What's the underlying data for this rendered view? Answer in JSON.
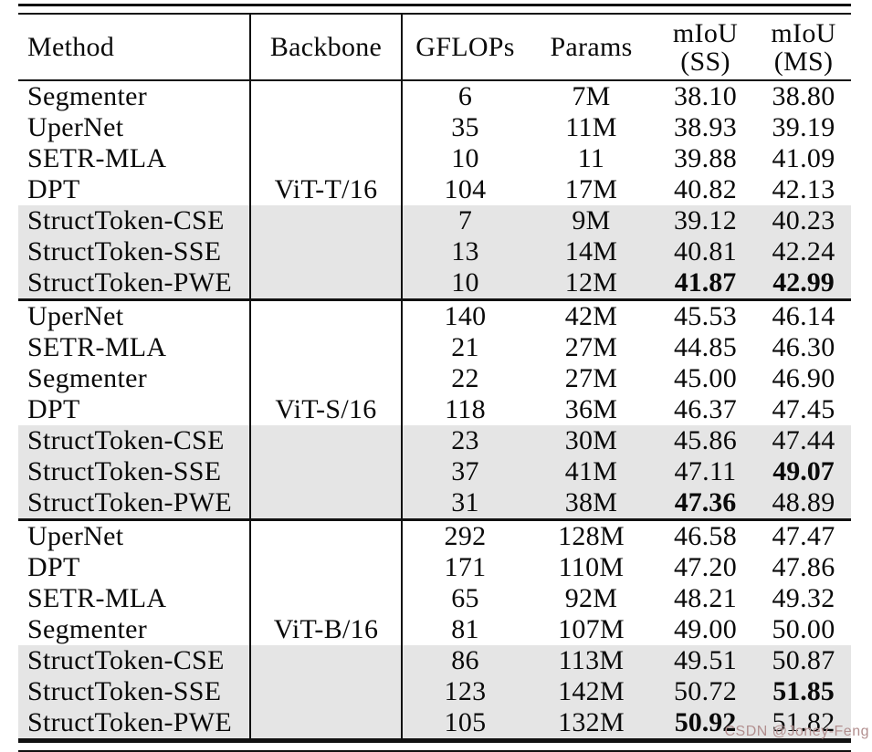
{
  "colors": {
    "rule": "#111111",
    "highlight_bg": "#e5e5e5",
    "watermark": "#b28f8f",
    "page_bg": "#ffffff"
  },
  "watermark": {
    "text": "CSDN @Joney-Feng"
  },
  "table": {
    "headers": {
      "method": "Method",
      "backbone": "Backbone",
      "gflops": "GFLOPs",
      "params": "Params",
      "miou_ss": [
        "mIoU",
        "(SS)"
      ],
      "miou_ms": [
        "mIoU",
        "(MS)"
      ]
    },
    "groups": [
      {
        "backbone": "ViT-T/16",
        "rows": [
          {
            "method": "Segmenter",
            "gflops": "6",
            "params": "7M",
            "ss": "38.10",
            "ms": "38.80",
            "highlight": false,
            "ss_bold": false,
            "ms_bold": false,
            "backbone_here": false
          },
          {
            "method": "UperNet",
            "gflops": "35",
            "params": "11M",
            "ss": "38.93",
            "ms": "39.19",
            "highlight": false,
            "ss_bold": false,
            "ms_bold": false,
            "backbone_here": false
          },
          {
            "method": "SETR-MLA",
            "gflops": "10",
            "params": "11",
            "ss": "39.88",
            "ms": "41.09",
            "highlight": false,
            "ss_bold": false,
            "ms_bold": false,
            "backbone_here": false
          },
          {
            "method": "DPT",
            "gflops": "104",
            "params": "17M",
            "ss": "40.82",
            "ms": "42.13",
            "highlight": false,
            "ss_bold": false,
            "ms_bold": false,
            "backbone_here": true
          },
          {
            "method": "StructToken-CSE",
            "gflops": "7",
            "params": "9M",
            "ss": "39.12",
            "ms": "40.23",
            "highlight": true,
            "ss_bold": false,
            "ms_bold": false,
            "backbone_here": false
          },
          {
            "method": "StructToken-SSE",
            "gflops": "13",
            "params": "14M",
            "ss": "40.81",
            "ms": "42.24",
            "highlight": true,
            "ss_bold": false,
            "ms_bold": false,
            "backbone_here": false
          },
          {
            "method": "StructToken-PWE",
            "gflops": "10",
            "params": "12M",
            "ss": "41.87",
            "ms": "42.99",
            "highlight": true,
            "ss_bold": true,
            "ms_bold": true,
            "backbone_here": false
          }
        ]
      },
      {
        "backbone": "ViT-S/16",
        "rows": [
          {
            "method": "UperNet",
            "gflops": "140",
            "params": "42M",
            "ss": "45.53",
            "ms": "46.14",
            "highlight": false,
            "ss_bold": false,
            "ms_bold": false,
            "backbone_here": false
          },
          {
            "method": "SETR-MLA",
            "gflops": "21",
            "params": "27M",
            "ss": "44.85",
            "ms": "46.30",
            "highlight": false,
            "ss_bold": false,
            "ms_bold": false,
            "backbone_here": false
          },
          {
            "method": "Segmenter",
            "gflops": "22",
            "params": "27M",
            "ss": "45.00",
            "ms": "46.90",
            "highlight": false,
            "ss_bold": false,
            "ms_bold": false,
            "backbone_here": false
          },
          {
            "method": "DPT",
            "gflops": "118",
            "params": "36M",
            "ss": "46.37",
            "ms": "47.45",
            "highlight": false,
            "ss_bold": false,
            "ms_bold": false,
            "backbone_here": true
          },
          {
            "method": "StructToken-CSE",
            "gflops": "23",
            "params": "30M",
            "ss": "45.86",
            "ms": "47.44",
            "highlight": true,
            "ss_bold": false,
            "ms_bold": false,
            "backbone_here": false
          },
          {
            "method": "StructToken-SSE",
            "gflops": "37",
            "params": "41M",
            "ss": "47.11",
            "ms": "49.07",
            "highlight": true,
            "ss_bold": false,
            "ms_bold": true,
            "backbone_here": false
          },
          {
            "method": "StructToken-PWE",
            "gflops": "31",
            "params": "38M",
            "ss": "47.36",
            "ms": "48.89",
            "highlight": true,
            "ss_bold": true,
            "ms_bold": false,
            "backbone_here": false
          }
        ]
      },
      {
        "backbone": "ViT-B/16",
        "rows": [
          {
            "method": "UperNet",
            "gflops": "292",
            "params": "128M",
            "ss": "46.58",
            "ms": "47.47",
            "highlight": false,
            "ss_bold": false,
            "ms_bold": false,
            "backbone_here": false
          },
          {
            "method": "DPT",
            "gflops": "171",
            "params": "110M",
            "ss": "47.20",
            "ms": "47.86",
            "highlight": false,
            "ss_bold": false,
            "ms_bold": false,
            "backbone_here": false
          },
          {
            "method": "SETR-MLA",
            "gflops": "65",
            "params": "92M",
            "ss": "48.21",
            "ms": "49.32",
            "highlight": false,
            "ss_bold": false,
            "ms_bold": false,
            "backbone_here": false
          },
          {
            "method": "Segmenter",
            "gflops": "81",
            "params": "107M",
            "ss": "49.00",
            "ms": "50.00",
            "highlight": false,
            "ss_bold": false,
            "ms_bold": false,
            "backbone_here": true
          },
          {
            "method": "StructToken-CSE",
            "gflops": "86",
            "params": "113M",
            "ss": "49.51",
            "ms": "50.87",
            "highlight": true,
            "ss_bold": false,
            "ms_bold": false,
            "backbone_here": false
          },
          {
            "method": "StructToken-SSE",
            "gflops": "123",
            "params": "142M",
            "ss": "50.72",
            "ms": "51.85",
            "highlight": true,
            "ss_bold": false,
            "ms_bold": true,
            "backbone_here": false
          },
          {
            "method": "StructToken-PWE",
            "gflops": "105",
            "params": "132M",
            "ss": "50.92",
            "ms": "51.82",
            "highlight": true,
            "ss_bold": true,
            "ms_bold": false,
            "backbone_here": false
          }
        ]
      }
    ]
  }
}
